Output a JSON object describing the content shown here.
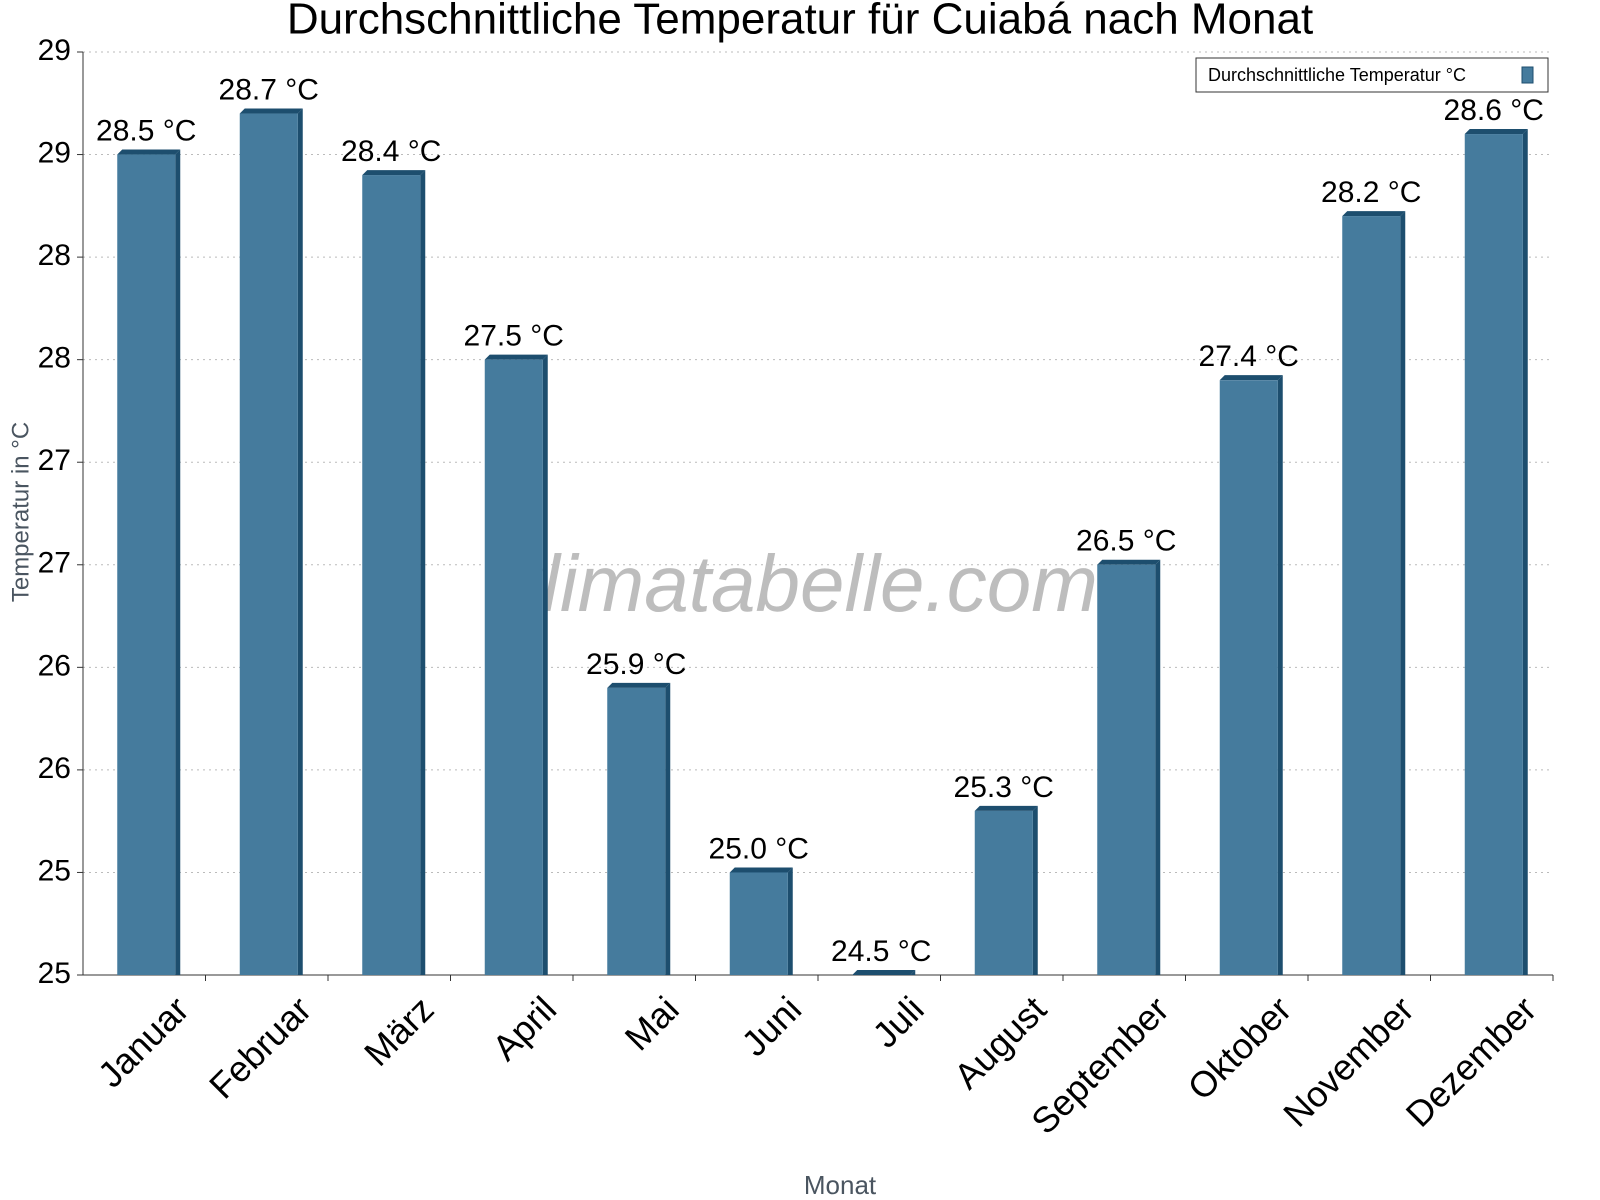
{
  "chart_data": {
    "type": "bar",
    "title": "Durchschnittliche Temperatur für Cuiabá nach Monat",
    "x_label": "Monat",
    "y_label": "Temperatur in °C",
    "watermark": "klimatabelle.com",
    "legend_position": "top-right",
    "grid": true,
    "categories": [
      "Januar",
      "Februar",
      "März",
      "April",
      "Mai",
      "Juni",
      "Juli",
      "August",
      "September",
      "Oktober",
      "November",
      "Dezember"
    ],
    "series": [
      {
        "name": "Durchschnittliche Temperatur °C",
        "color": "#457b9d",
        "values": [
          28.5,
          28.7,
          28.4,
          27.5,
          25.9,
          25.0,
          24.5,
          25.3,
          26.5,
          27.4,
          28.2,
          28.6
        ],
        "value_labels": [
          "28.5 °C",
          "28.7 °C",
          "28.4 °C",
          "27.5 °C",
          "25.9 °C",
          "25.0 °C",
          "24.5 °C",
          "25.3 °C",
          "26.5 °C",
          "27.4 °C",
          "28.2 °C",
          "28.6 °C"
        ]
      }
    ],
    "ylim": [
      24.5,
      29.0
    ],
    "yticks": [
      {
        "value": 24.5,
        "label": "25"
      },
      25,
      {
        "value": 25.5,
        "label": "26"
      },
      26,
      {
        "value": 26.5,
        "label": "27"
      },
      27,
      {
        "value": 27.5,
        "label": "28"
      },
      28,
      {
        "value": 28.5,
        "label": "29"
      },
      29
    ]
  }
}
